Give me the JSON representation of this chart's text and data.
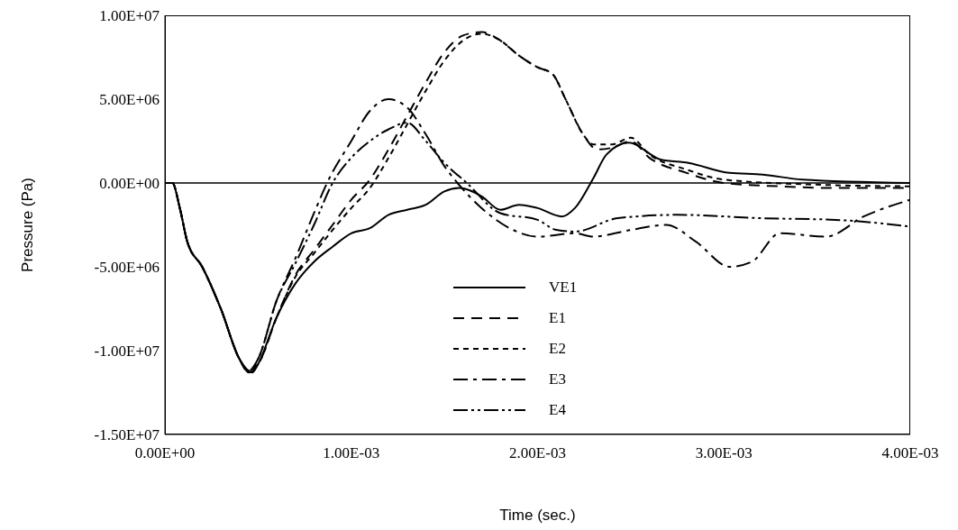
{
  "chart_data": {
    "type": "line",
    "xlabel": "Time (sec.)",
    "ylabel": "Pressure (Pa)",
    "xlim": [
      0,
      0.004
    ],
    "ylim": [
      -15000000,
      10000000
    ],
    "xticks": [
      {
        "value": 0,
        "label": "0.00E+00"
      },
      {
        "value": 0.001,
        "label": "1.00E-03"
      },
      {
        "value": 0.002,
        "label": "2.00E-03"
      },
      {
        "value": 0.003,
        "label": "3.00E-03"
      },
      {
        "value": 0.004,
        "label": "4.00E-03"
      }
    ],
    "yticks": [
      {
        "value": -15000000,
        "label": "-1.50E+07"
      },
      {
        "value": -10000000,
        "label": "-1.00E+07"
      },
      {
        "value": -5000000,
        "label": "-5.00E+06"
      },
      {
        "value": 0,
        "label": "0.00E+00"
      },
      {
        "value": 5000000,
        "label": "5.00E+06"
      },
      {
        "value": 10000000,
        "label": "1.00E+07"
      }
    ],
    "grid": false,
    "legend": "bottom",
    "marker": "none",
    "ref_lines": [
      {
        "axis": "y",
        "value": 0,
        "label": null,
        "color": "#000000"
      }
    ],
    "series": [
      {
        "name": "VE1",
        "color": "#000000",
        "line_style": "solid",
        "x": [
          0,
          4e-05,
          8e-05,
          0.00012,
          0.0002,
          0.0003,
          0.0004,
          0.00047,
          0.0005,
          0.0006,
          0.0007,
          0.0008,
          0.0009,
          0.001,
          0.0011,
          0.0012,
          0.0013,
          0.0014,
          0.0015,
          0.00158,
          0.0017,
          0.0018,
          0.0019,
          0.002,
          0.00213,
          0.0022,
          0.0023,
          0.00237,
          0.00249,
          0.00266,
          0.00281,
          0.00303,
          0.00321,
          0.00342,
          0.004
        ],
        "values": [
          0,
          0,
          -1500000,
          -3500000,
          -5000000,
          -7500000,
          -10500000,
          -11300000,
          -10800000,
          -8000000,
          -6000000,
          -4700000,
          -3800000,
          -3000000,
          -2700000,
          -1900000,
          -1600000,
          -1300000,
          -500000,
          -300000,
          -800000,
          -1600000,
          -1300000,
          -1500000,
          -2000000,
          -1500000,
          300000,
          1700000,
          2400000,
          1400000,
          1200000,
          600000,
          500000,
          200000,
          0
        ]
      },
      {
        "name": "E1",
        "color": "#000000",
        "line_style": "dashed",
        "x": [
          0,
          4e-05,
          8e-05,
          0.00012,
          0.0002,
          0.0003,
          0.0004,
          0.00045,
          0.0005,
          0.0006,
          0.0007,
          0.0008,
          0.0009,
          0.001,
          0.0011,
          0.0012,
          0.0013,
          0.0014,
          0.0015,
          0.0016,
          0.0017,
          0.0018,
          0.0019,
          0.002,
          0.00208,
          0.00215,
          0.00225,
          0.00232,
          0.0024,
          0.0025,
          0.0026,
          0.0028,
          0.003,
          0.0033,
          0.0036,
          0.004
        ],
        "values": [
          0,
          0,
          -1500000,
          -3500000,
          -5000000,
          -7500000,
          -10500000,
          -11300000,
          -10800000,
          -8000000,
          -5500000,
          -4000000,
          -2500000,
          -1000000,
          200000,
          2000000,
          4000000,
          6000000,
          7800000,
          8800000,
          9000000,
          8500000,
          7600000,
          6900000,
          6500000,
          5000000,
          2800000,
          2000000,
          2100000,
          2500000,
          1500000,
          600000,
          0,
          -200000,
          -300000,
          -300000
        ]
      },
      {
        "name": "E2",
        "color": "#000000",
        "line_style": "short_dashed",
        "x": [
          0,
          4e-05,
          8e-05,
          0.00012,
          0.0002,
          0.0003,
          0.0004,
          0.00045,
          0.0005,
          0.0006,
          0.0007,
          0.0008,
          0.0009,
          0.001,
          0.0011,
          0.0012,
          0.0013,
          0.0014,
          0.0015,
          0.0016,
          0.0017,
          0.0018,
          0.0019,
          0.002,
          0.00208,
          0.00215,
          0.00225,
          0.0023,
          0.0024,
          0.0025,
          0.0026,
          0.0028,
          0.003,
          0.0035,
          0.004
        ],
        "values": [
          0,
          0,
          -1500000,
          -3500000,
          -5000000,
          -7500000,
          -10500000,
          -11200000,
          -10800000,
          -8000000,
          -5600000,
          -4200000,
          -2800000,
          -1500000,
          -300000,
          1500000,
          3500000,
          5500000,
          7300000,
          8500000,
          8900000,
          8500000,
          7600000,
          6900000,
          6500000,
          5000000,
          2800000,
          2300000,
          2300000,
          2700000,
          1700000,
          800000,
          200000,
          -100000,
          -200000
        ]
      },
      {
        "name": "E3",
        "color": "#000000",
        "line_style": "dash_dot",
        "x": [
          0,
          4e-05,
          8e-05,
          0.00012,
          0.0002,
          0.0003,
          0.0004,
          0.00045,
          0.0005,
          0.0006,
          0.0007,
          0.0008,
          0.00087,
          0.001,
          0.0011,
          0.0012,
          0.0013,
          0.0014,
          0.0015,
          0.00157,
          0.0017,
          0.00185,
          0.002,
          0.0022,
          0.0023,
          0.0025,
          0.00269,
          0.00285,
          0.00303,
          0.00315,
          0.0033,
          0.00355,
          0.00375,
          0.004
        ],
        "values": [
          0,
          0,
          -1500000,
          -3500000,
          -5000000,
          -7500000,
          -10500000,
          -11300000,
          -10500000,
          -7000000,
          -4500000,
          -1800000,
          0,
          2500000,
          4300000,
          5000000,
          4500000,
          2900000,
          1000000,
          0,
          -1500000,
          -2700000,
          -3200000,
          -3000000,
          -3200000,
          -2800000,
          -2500000,
          -3500000,
          -5000000,
          -4700000,
          -3000000,
          -3200000,
          -2000000,
          -1000000
        ]
      },
      {
        "name": "E4",
        "color": "#000000",
        "line_style": "dash_dot_dot",
        "x": [
          0,
          4e-05,
          8e-05,
          0.00012,
          0.0002,
          0.0003,
          0.0004,
          0.00045,
          0.0005,
          0.0006,
          0.0007,
          0.0008,
          0.0009,
          0.001,
          0.0011,
          0.0012,
          0.0013,
          0.0014,
          0.0015,
          0.00162,
          0.0018,
          0.002,
          0.0021,
          0.0022,
          0.00243,
          0.00275,
          0.0032,
          0.0036,
          0.004
        ],
        "values": [
          0,
          0,
          -1500000,
          -3500000,
          -5000000,
          -7500000,
          -10500000,
          -11200000,
          -10500000,
          -7000000,
          -4800000,
          -2500000,
          0,
          1500000,
          2500000,
          3200000,
          3600000,
          2500000,
          1200000,
          0,
          -1800000,
          -2200000,
          -2800000,
          -2900000,
          -2100000,
          -1900000,
          -2100000,
          -2200000,
          -2600000
        ]
      }
    ]
  }
}
